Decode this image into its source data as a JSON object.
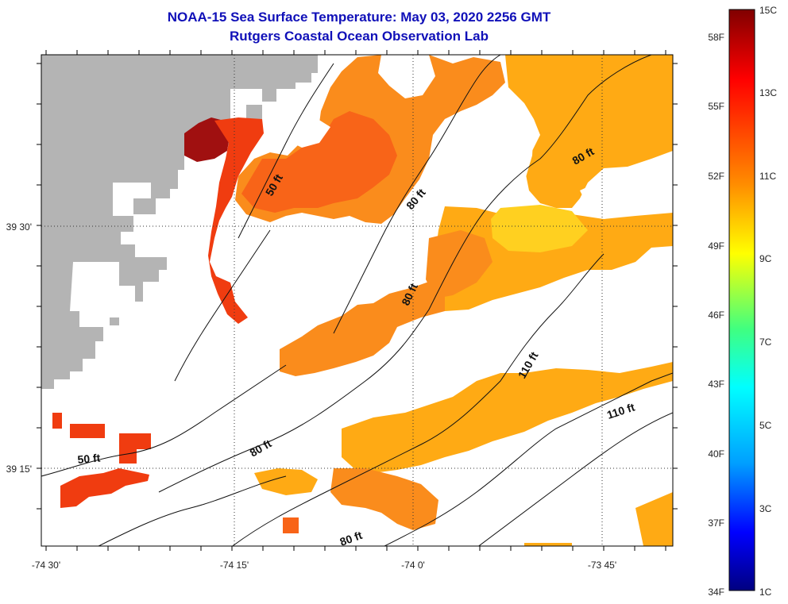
{
  "title": {
    "line1": "NOAA-15 Sea Surface Temperature:  May 03, 2020 2256 GMT",
    "line2": "Rutgers Coastal Ocean Observation Lab"
  },
  "axes": {
    "lon_labels": [
      "-74 30'",
      "-74 15'",
      "-74 0'",
      "-73 45'"
    ],
    "lat_labels": [
      "39 30'",
      "39 15'"
    ]
  },
  "contours": {
    "labels": [
      "50 ft",
      "80 ft",
      "80 ft",
      "80 ft",
      "110 ft",
      "110 ft",
      "50 ft",
      "80 ft",
      "80 ft"
    ]
  },
  "colorbar": {
    "f_labels": [
      "58F",
      "55F",
      "52F",
      "49F",
      "46F",
      "43F",
      "40F",
      "37F",
      "34F"
    ],
    "c_labels": [
      "15C",
      "13C",
      "11C",
      "9C",
      "7C",
      "5C",
      "3C",
      "1C"
    ],
    "colors": {
      "dark_red": "#800000",
      "red": "#ff1a00",
      "orange": "#ff8c00",
      "yellow": "#ffff00",
      "cyan": "#00ffff",
      "blue": "#0000ff",
      "navy": "#000080"
    }
  },
  "map_colors": {
    "land": "#b4b4b4",
    "sst_red": "#f03c10",
    "sst_orange_red": "#f86418",
    "sst_orange": "#fa8c1c",
    "sst_amber": "#ffaa14",
    "sst_yellow": "#ffd020",
    "sst_dark_red": "#a01010"
  }
}
